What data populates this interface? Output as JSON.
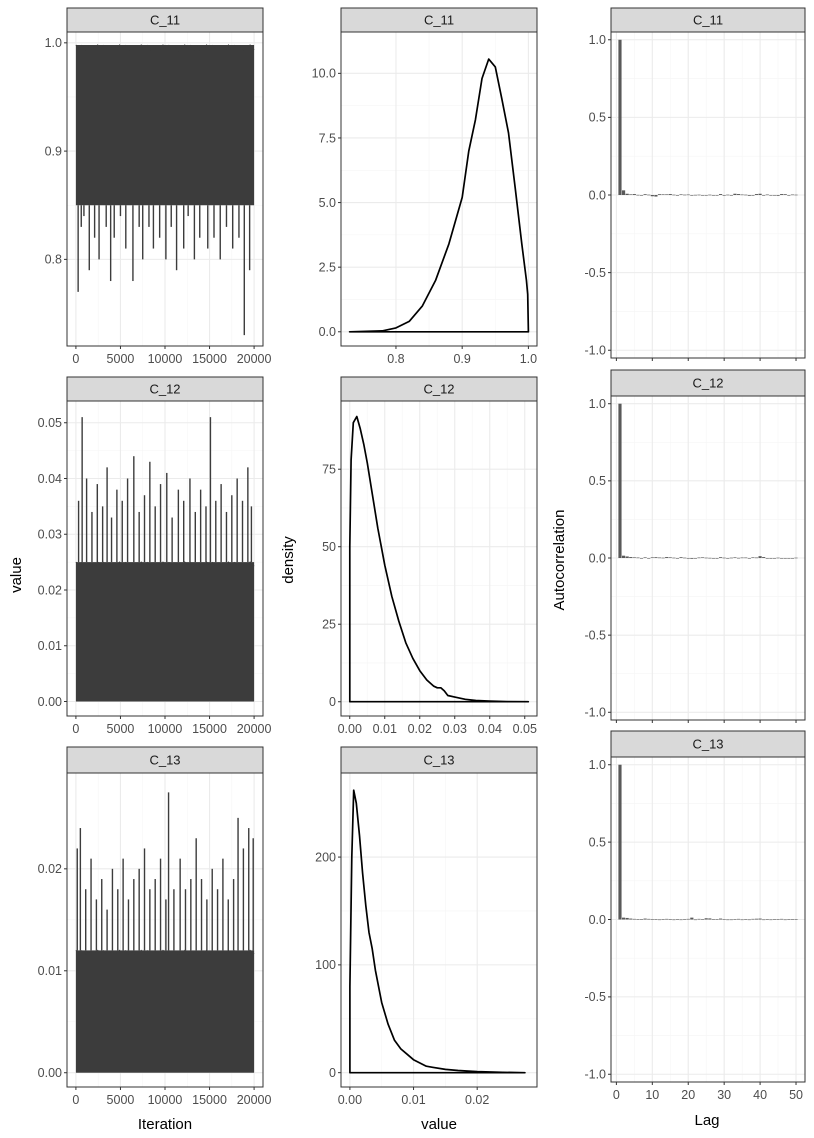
{
  "figure": {
    "col_axis_titles": {
      "trace_x": "Iteration",
      "density_x": "value",
      "acf_x": "Lag"
    },
    "row_axis_titles": {
      "trace_y": "value",
      "density_y": "density",
      "acf_y": "Autocorrelation"
    }
  },
  "colors": {
    "strip_fill": "#d9d9d9",
    "panel_border": "#333333",
    "grid_major": "#ebebeb",
    "grid_minor": "#f5f5f5",
    "trace_fill": "#3c3c3c",
    "density_line": "#000000",
    "acf_bar": "#595959"
  },
  "chart_data": [
    {
      "type": "area",
      "panel": "trace",
      "title": "C_11",
      "xlim": [
        -1000,
        21000
      ],
      "ylim": [
        0.72,
        1.01
      ],
      "x_ticks": [
        0,
        5000,
        10000,
        15000,
        20000
      ],
      "x_tick_labels": [
        "0",
        "5000",
        "10000",
        "15000",
        "20000"
      ],
      "y_ticks": [
        0.8,
        0.9,
        1.0
      ],
      "y_tick_labels": [
        "0.8",
        "0.9",
        "1.0"
      ],
      "band": {
        "x": [
          0,
          20000
        ],
        "lower": 0.85,
        "upper": 0.998
      },
      "spikes": [
        [
          250,
          0.77
        ],
        [
          600,
          0.83
        ],
        [
          900,
          0.84
        ],
        [
          1500,
          0.79
        ],
        [
          2100,
          0.82
        ],
        [
          2600,
          0.8
        ],
        [
          3400,
          0.83
        ],
        [
          3900,
          0.78
        ],
        [
          4300,
          0.82
        ],
        [
          5000,
          0.84
        ],
        [
          5600,
          0.81
        ],
        [
          6400,
          0.78
        ],
        [
          7100,
          0.83
        ],
        [
          7500,
          0.8
        ],
        [
          8200,
          0.83
        ],
        [
          8700,
          0.81
        ],
        [
          9400,
          0.82
        ],
        [
          10100,
          0.8
        ],
        [
          10700,
          0.83
        ],
        [
          11300,
          0.79
        ],
        [
          12100,
          0.81
        ],
        [
          12600,
          0.84
        ],
        [
          13300,
          0.8
        ],
        [
          13900,
          0.82
        ],
        [
          14800,
          0.81
        ],
        [
          15500,
          0.82
        ],
        [
          16200,
          0.8
        ],
        [
          16900,
          0.83
        ],
        [
          17600,
          0.81
        ],
        [
          18300,
          0.82
        ],
        [
          18900,
          0.73
        ],
        [
          19500,
          0.79
        ]
      ],
      "grid": true
    },
    {
      "type": "line",
      "panel": "density",
      "title": "C_11",
      "xlim": [
        0.717,
        1.013
      ],
      "ylim": [
        -0.55,
        11.6
      ],
      "x_ticks": [
        0.8,
        0.9,
        1.0
      ],
      "x_tick_labels": [
        "0.8",
        "0.9",
        "1.0"
      ],
      "y_ticks": [
        0,
        2.5,
        5,
        7.5,
        10
      ],
      "y_tick_labels": [
        "0.0",
        "2.5",
        "5.0",
        "7.5",
        "10.0"
      ],
      "x": [
        0.73,
        0.78,
        0.8,
        0.82,
        0.84,
        0.86,
        0.88,
        0.9,
        0.91,
        0.92,
        0.93,
        0.94,
        0.95,
        0.96,
        0.97,
        0.98,
        0.99,
        0.997,
        0.999,
        1.0
      ],
      "y": [
        0,
        0.04,
        0.15,
        0.4,
        1.0,
        2.0,
        3.4,
        5.2,
        7.0,
        8.2,
        9.8,
        10.55,
        10.25,
        9.0,
        7.7,
        5.6,
        3.4,
        2.0,
        1.45,
        0.0
      ],
      "grid": true
    },
    {
      "type": "bar",
      "panel": "acf",
      "title": "C_11",
      "xlim": [
        -1.5,
        52.5
      ],
      "ylim": [
        -1.05,
        1.05
      ],
      "x_ticks": [
        0,
        10,
        20,
        30,
        40,
        50
      ],
      "y_ticks": [
        -1.0,
        -0.5,
        0,
        0.5,
        1.0
      ],
      "y_tick_labels": [
        "-1.0",
        "-0.5",
        "0.0",
        "0.5",
        "1.0"
      ],
      "lags": [
        1,
        2,
        3,
        4,
        5,
        6,
        7,
        8,
        9,
        10,
        11,
        12,
        13,
        14,
        15,
        16,
        17,
        18,
        19,
        20,
        21,
        22,
        23,
        24,
        25,
        26,
        27,
        28,
        29,
        30,
        31,
        32,
        33,
        34,
        35,
        36,
        37,
        38,
        39,
        40,
        41,
        42,
        43,
        44,
        45,
        46,
        47,
        48,
        49,
        50
      ],
      "values": [
        1.0,
        0.03,
        0.008,
        0.004,
        0.006,
        0.001,
        -0.002,
        0.005,
        0.002,
        -0.008,
        -0.01,
        0.005,
        0.004,
        0.004,
        0.006,
        0.002,
        -0.004,
        0.004,
        0.002,
        0.003,
        -0.004,
        0.001,
        0.002,
        -0.003,
        -0.003,
        0.002,
        -0.002,
        -0.002,
        0.006,
        -0.004,
        0.002,
        -0.002,
        0.008,
        0.006,
        0.003,
        0.002,
        -0.005,
        -0.004,
        0.006,
        0.008,
        -0.002,
        0.003,
        0.0,
        -0.003,
        -0.005,
        0.006,
        0.005,
        -0.003,
        0.003,
        0.002
      ],
      "grid": true
    },
    {
      "type": "area",
      "panel": "trace",
      "title": "C_12",
      "xlim": [
        -1000,
        21000
      ],
      "ylim": [
        -0.0026,
        0.0539
      ],
      "x_ticks": [
        0,
        5000,
        10000,
        15000,
        20000
      ],
      "x_tick_labels": [
        "0",
        "5000",
        "10000",
        "15000",
        "20000"
      ],
      "y_ticks": [
        0,
        0.01,
        0.02,
        0.03,
        0.04,
        0.05
      ],
      "y_tick_labels": [
        "0.00",
        "0.01",
        "0.02",
        "0.03",
        "0.04",
        "0.05"
      ],
      "band": {
        "x": [
          0,
          20000
        ],
        "lower": 0.0,
        "upper": 0.025
      },
      "spikes": [
        [
          300,
          0.036
        ],
        [
          700,
          0.051
        ],
        [
          1200,
          0.04
        ],
        [
          1800,
          0.034
        ],
        [
          2400,
          0.039
        ],
        [
          3000,
          0.035
        ],
        [
          3500,
          0.042
        ],
        [
          4000,
          0.033
        ],
        [
          4600,
          0.038
        ],
        [
          5200,
          0.036
        ],
        [
          5800,
          0.04
        ],
        [
          6500,
          0.044
        ],
        [
          7100,
          0.034
        ],
        [
          7700,
          0.037
        ],
        [
          8300,
          0.043
        ],
        [
          8900,
          0.035
        ],
        [
          9500,
          0.039
        ],
        [
          10200,
          0.041
        ],
        [
          10800,
          0.033
        ],
        [
          11500,
          0.038
        ],
        [
          12100,
          0.036
        ],
        [
          12800,
          0.04
        ],
        [
          13400,
          0.034
        ],
        [
          14000,
          0.038
        ],
        [
          14600,
          0.035
        ],
        [
          15100,
          0.051
        ],
        [
          15700,
          0.036
        ],
        [
          16300,
          0.039
        ],
        [
          16900,
          0.034
        ],
        [
          17500,
          0.037
        ],
        [
          18100,
          0.04
        ],
        [
          18700,
          0.036
        ],
        [
          19300,
          0.042
        ],
        [
          19700,
          0.035
        ]
      ],
      "grid": true
    },
    {
      "type": "line",
      "panel": "density",
      "title": "C_12",
      "xlim": [
        -0.0025,
        0.0535
      ],
      "ylim": [
        -4.6,
        97.0
      ],
      "x_ticks": [
        0,
        0.01,
        0.02,
        0.03,
        0.04,
        0.05
      ],
      "x_tick_labels": [
        "0.00",
        "0.01",
        "0.02",
        "0.03",
        "0.04",
        "0.05"
      ],
      "y_ticks": [
        0,
        25,
        50,
        75
      ],
      "y_tick_labels": [
        "0",
        "25",
        "50",
        "75"
      ],
      "x": [
        0.0,
        0.0,
        0.0004,
        0.001,
        0.002,
        0.003,
        0.004,
        0.005,
        0.006,
        0.007,
        0.008,
        0.009,
        0.01,
        0.012,
        0.014,
        0.016,
        0.018,
        0.02,
        0.022,
        0.024,
        0.025,
        0.026,
        0.027,
        0.028,
        0.03,
        0.033,
        0.036,
        0.04,
        0.045,
        0.051
      ],
      "y": [
        0,
        50,
        78,
        90,
        92,
        88,
        83,
        77,
        70,
        63,
        56,
        50,
        44,
        34,
        26,
        19,
        14,
        10,
        7,
        5,
        4.5,
        4.5,
        3.5,
        2,
        1.5,
        0.8,
        0.4,
        0.2,
        0.05,
        0.0
      ],
      "grid": true
    },
    {
      "type": "bar",
      "panel": "acf",
      "title": "C_12",
      "xlim": [
        -1.5,
        52.5
      ],
      "ylim": [
        -1.05,
        1.05
      ],
      "x_ticks": [
        0,
        10,
        20,
        30,
        40,
        50
      ],
      "y_ticks": [
        -1.0,
        -0.5,
        0,
        0.5,
        1.0
      ],
      "y_tick_labels": [
        "-1.0",
        "-0.5",
        "0.0",
        "0.5",
        "1.0"
      ],
      "lags": [
        1,
        2,
        3,
        4,
        5,
        6,
        7,
        8,
        9,
        10,
        11,
        12,
        13,
        14,
        15,
        16,
        17,
        18,
        19,
        20,
        21,
        22,
        23,
        24,
        25,
        26,
        27,
        28,
        29,
        30,
        31,
        32,
        33,
        34,
        35,
        36,
        37,
        38,
        39,
        40,
        41,
        42,
        43,
        44,
        45,
        46,
        47,
        48,
        49,
        50
      ],
      "values": [
        1.0,
        0.015,
        0.01,
        0.006,
        0.004,
        0.003,
        0.0,
        0.004,
        -0.002,
        0.004,
        0.005,
        0.003,
        0.002,
        0.006,
        0.004,
        0.002,
        -0.003,
        0.005,
        0.002,
        0.0,
        -0.005,
        -0.003,
        0.003,
        0.004,
        0.002,
        0.001,
        -0.002,
        -0.004,
        0.005,
        0.002,
        -0.003,
        0.002,
        0.004,
        0.001,
        0.003,
        0.003,
        -0.002,
        0.004,
        0.003,
        0.012,
        0.006,
        -0.002,
        -0.004,
        -0.003,
        0.002,
        -0.002,
        0.0,
        -0.002,
        -0.003,
        0.002
      ],
      "grid": true
    },
    {
      "type": "area",
      "panel": "trace",
      "title": "C_13",
      "xlim": [
        -1000,
        21000
      ],
      "ylim": [
        -0.0014,
        0.0294
      ],
      "x_ticks": [
        0,
        5000,
        10000,
        15000,
        20000
      ],
      "x_tick_labels": [
        "0",
        "5000",
        "10000",
        "15000",
        "20000"
      ],
      "y_ticks": [
        0,
        0.01,
        0.02
      ],
      "y_tick_labels": [
        "0.00",
        "0.01",
        "0.02"
      ],
      "band": {
        "x": [
          0,
          20000
        ],
        "lower": 0.0,
        "upper": 0.012
      },
      "spikes": [
        [
          150,
          0.022
        ],
        [
          500,
          0.024
        ],
        [
          1100,
          0.018
        ],
        [
          1700,
          0.021
        ],
        [
          2300,
          0.017
        ],
        [
          2900,
          0.019
        ],
        [
          3500,
          0.016
        ],
        [
          4100,
          0.02
        ],
        [
          4700,
          0.018
        ],
        [
          5300,
          0.021
        ],
        [
          5900,
          0.017
        ],
        [
          6500,
          0.019
        ],
        [
          7100,
          0.02
        ],
        [
          7700,
          0.022
        ],
        [
          8300,
          0.018
        ],
        [
          8900,
          0.019
        ],
        [
          9500,
          0.021
        ],
        [
          10100,
          0.017
        ],
        [
          10400,
          0.0275
        ],
        [
          11000,
          0.018
        ],
        [
          11700,
          0.021
        ],
        [
          12300,
          0.018
        ],
        [
          12900,
          0.019
        ],
        [
          13500,
          0.023
        ],
        [
          14100,
          0.019
        ],
        [
          14700,
          0.017
        ],
        [
          15300,
          0.02
        ],
        [
          15900,
          0.018
        ],
        [
          16500,
          0.021
        ],
        [
          17100,
          0.017
        ],
        [
          17700,
          0.019
        ],
        [
          18200,
          0.025
        ],
        [
          18800,
          0.022
        ],
        [
          19400,
          0.024
        ],
        [
          19900,
          0.023
        ]
      ],
      "grid": true
    },
    {
      "type": "line",
      "panel": "density",
      "title": "C_13",
      "xlim": [
        -0.0014,
        0.0294
      ],
      "ylim": [
        -13.3,
        278
      ],
      "x_ticks": [
        0,
        0.01,
        0.02
      ],
      "x_tick_labels": [
        "0.00",
        "0.01",
        "0.02"
      ],
      "y_ticks": [
        0,
        100,
        200
      ],
      "y_tick_labels": [
        "0",
        "100",
        "200"
      ],
      "x": [
        0.0,
        0.0,
        0.0003,
        0.0006,
        0.001,
        0.0015,
        0.002,
        0.0025,
        0.003,
        0.0035,
        0.004,
        0.005,
        0.006,
        0.007,
        0.008,
        0.009,
        0.01,
        0.011,
        0.012,
        0.013,
        0.015,
        0.017,
        0.02,
        0.024,
        0.0275
      ],
      "y": [
        0,
        80,
        200,
        262,
        250,
        220,
        185,
        155,
        130,
        115,
        95,
        65,
        45,
        30,
        22,
        17,
        12,
        9,
        6,
        5,
        3,
        2,
        1,
        0.3,
        0.0
      ],
      "grid": true
    },
    {
      "type": "bar",
      "panel": "acf",
      "title": "C_13",
      "xlim": [
        -1.5,
        52.5
      ],
      "ylim": [
        -1.05,
        1.05
      ],
      "x_ticks": [
        0,
        10,
        20,
        30,
        40,
        50
      ],
      "x_tick_labels": [
        "0",
        "10",
        "20",
        "30",
        "40",
        "50"
      ],
      "y_ticks": [
        -1.0,
        -0.5,
        0,
        0.5,
        1.0
      ],
      "y_tick_labels": [
        "-1.0",
        "-0.5",
        "0.0",
        "0.5",
        "1.0"
      ],
      "lags": [
        1,
        2,
        3,
        4,
        5,
        6,
        7,
        8,
        9,
        10,
        11,
        12,
        13,
        14,
        15,
        16,
        17,
        18,
        19,
        20,
        21,
        22,
        23,
        24,
        25,
        26,
        27,
        28,
        29,
        30,
        31,
        32,
        33,
        34,
        35,
        36,
        37,
        38,
        39,
        40,
        41,
        42,
        43,
        44,
        45,
        46,
        47,
        48,
        49,
        50
      ],
      "values": [
        1.0,
        0.012,
        0.01,
        0.006,
        0.004,
        0.003,
        0.002,
        0.006,
        0.004,
        0.002,
        0.001,
        -0.002,
        0.003,
        0.004,
        0.002,
        -0.004,
        0.002,
        -0.003,
        0.002,
        0.004,
        0.012,
        -0.002,
        0.004,
        0.002,
        0.008,
        0.007,
        0.003,
        0.002,
        0.006,
        0.002,
        -0.004,
        -0.003,
        0.003,
        0.004,
        -0.002,
        0.002,
        -0.003,
        0.004,
        0.005,
        0.006,
        -0.002,
        0.003,
        -0.003,
        0.002,
        0.001,
        0.004,
        -0.002,
        0.003,
        0.002,
        0.001
      ],
      "grid": true
    }
  ]
}
